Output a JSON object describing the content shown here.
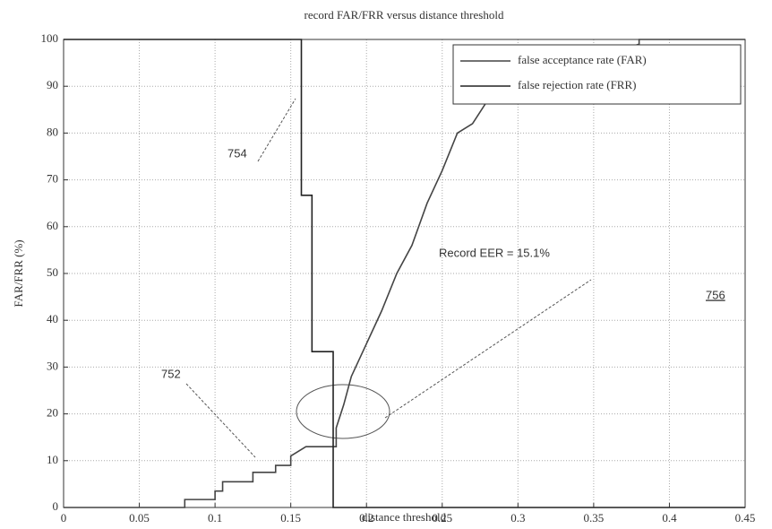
{
  "chart_data": {
    "type": "line",
    "title": "record FAR/FRR versus distance threshold",
    "xlabel": "distance threshold",
    "ylabel": "FAR/FRR (%)",
    "xlim": [
      0,
      0.45
    ],
    "ylim": [
      0,
      100
    ],
    "xticks": [
      0,
      0.05,
      0.1,
      0.15,
      0.2,
      0.25,
      0.3,
      0.35,
      0.4,
      0.45
    ],
    "yticks": [
      0,
      10,
      20,
      30,
      40,
      50,
      60,
      70,
      80,
      90,
      100
    ],
    "grid": true,
    "legend": "upper right",
    "series": [
      {
        "name": "false acceptance rate (FAR)",
        "color": "#444444",
        "x": [
          0,
          0.08,
          0.08,
          0.1,
          0.1,
          0.105,
          0.105,
          0.125,
          0.125,
          0.14,
          0.14,
          0.15,
          0.15,
          0.16,
          0.18,
          0.18,
          0.185,
          0.19,
          0.2,
          0.21,
          0.22,
          0.23,
          0.24,
          0.25,
          0.26,
          0.27,
          0.28,
          0.29,
          0.3,
          0.33,
          0.36,
          0.38,
          0.38,
          0.45
        ],
        "values": [
          0,
          0,
          1.7,
          1.7,
          3.5,
          3.5,
          5.5,
          5.5,
          7.5,
          7.5,
          9,
          9,
          11,
          13,
          13,
          17,
          22,
          28,
          35,
          42,
          50,
          56,
          65,
          72,
          80,
          82,
          87,
          90,
          92,
          95,
          97,
          99,
          100,
          100
        ]
      },
      {
        "name": "false rejection rate (FRR)",
        "color": "#222222",
        "x": [
          0,
          0.157,
          0.157,
          0.164,
          0.164,
          0.178,
          0.178,
          0.45
        ],
        "values": [
          100,
          100,
          66.7,
          66.7,
          33.3,
          33.3,
          0,
          0
        ]
      }
    ],
    "annotations": [
      "754",
      "752",
      "Record EER = 15.1%",
      "756"
    ]
  }
}
